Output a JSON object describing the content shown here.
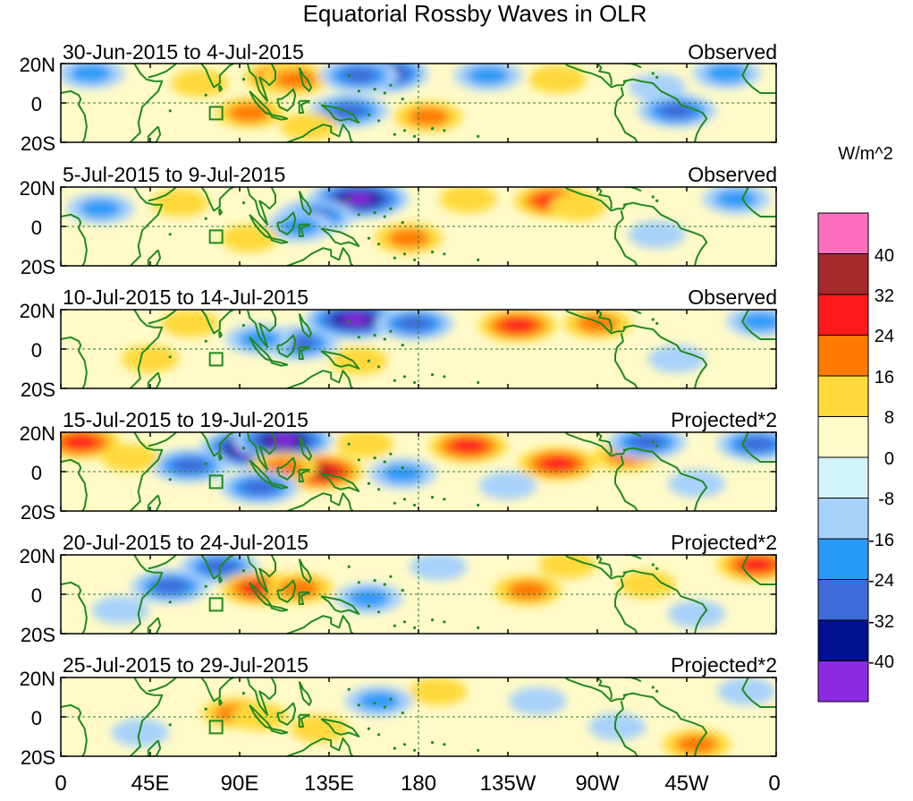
{
  "figure": {
    "title": "Equatorial Rossby Waves in OLR",
    "units_label": "W/m^2"
  },
  "panels": [
    {
      "date_range": "30-Jun-2015 to 4-Jul-2015",
      "type": "Observed"
    },
    {
      "date_range": "5-Jul-2015 to 9-Jul-2015",
      "type": "Observed"
    },
    {
      "date_range": "10-Jul-2015 to 14-Jul-2015",
      "type": "Observed"
    },
    {
      "date_range": "15-Jul-2015 to 19-Jul-2015",
      "type": "Projected*2"
    },
    {
      "date_range": "20-Jul-2015 to 24-Jul-2015",
      "type": "Projected*2"
    },
    {
      "date_range": "25-Jul-2015 to 29-Jul-2015",
      "type": "Projected*2"
    }
  ],
  "axes": {
    "lat_labels": [
      "20N",
      "0",
      "20S"
    ],
    "lon_labels": [
      "0",
      "45E",
      "90E",
      "135E",
      "180",
      "135W",
      "90W",
      "45W",
      "0"
    ],
    "lon_range": [
      0,
      360
    ],
    "lat_range": [
      -20,
      20
    ]
  },
  "colorbar": {
    "colors_top_to_bottom": [
      "#ff6fc0",
      "#a52a2a",
      "#ff1a1a",
      "#ff7a00",
      "#ffd93a",
      "#fffac8",
      "#d4f4fb",
      "#a8d2fa",
      "#2a9af8",
      "#3f6bd8",
      "#00108f",
      "#8a2be2"
    ],
    "tick_labels": [
      "40",
      "32",
      "24",
      "16",
      "8",
      "0",
      "-8",
      "-16",
      "-24",
      "-32",
      "-40"
    ]
  },
  "palette": {
    "coast": "#1f8a1f",
    "dashed_ref": "#2f7a2f"
  },
  "anomaly_features": [
    [
      {
        "lon": 112,
        "lat": 13,
        "level": 3
      },
      {
        "lon": 118,
        "lat": 12,
        "level": 2
      },
      {
        "lon": 160,
        "lat": 15,
        "level": -5
      },
      {
        "lon": 150,
        "lat": 14,
        "level": -3
      },
      {
        "lon": 215,
        "lat": 14,
        "level": -2
      },
      {
        "lon": 15,
        "lat": 15,
        "level": -2
      },
      {
        "lon": 95,
        "lat": -5,
        "level": 2
      },
      {
        "lon": 145,
        "lat": -4,
        "level": -3
      },
      {
        "lon": 125,
        "lat": -12,
        "level": 1
      },
      {
        "lon": 185,
        "lat": -7,
        "level": 2
      },
      {
        "lon": 250,
        "lat": 12,
        "level": 1
      },
      {
        "lon": 310,
        "lat": -4,
        "level": -3
      },
      {
        "lon": 300,
        "lat": 8,
        "level": -1
      },
      {
        "lon": 70,
        "lat": 10,
        "level": 1
      },
      {
        "lon": 335,
        "lat": 15,
        "level": -2
      }
    ],
    [
      {
        "lon": 150,
        "lat": 14,
        "level": -5
      },
      {
        "lon": 128,
        "lat": 5,
        "level": -3
      },
      {
        "lon": 120,
        "lat": 0,
        "level": -2
      },
      {
        "lon": 248,
        "lat": 13,
        "level": 3
      },
      {
        "lon": 260,
        "lat": 10,
        "level": 1
      },
      {
        "lon": 205,
        "lat": 14,
        "level": 1
      },
      {
        "lon": 20,
        "lat": 9,
        "level": -2
      },
      {
        "lon": 95,
        "lat": -6,
        "level": 1
      },
      {
        "lon": 175,
        "lat": -6,
        "level": 2
      },
      {
        "lon": 340,
        "lat": 14,
        "level": -2
      },
      {
        "lon": 300,
        "lat": -4,
        "level": -1
      },
      {
        "lon": 60,
        "lat": 12,
        "level": 1
      }
    ],
    [
      {
        "lon": 148,
        "lat": 15,
        "level": -5
      },
      {
        "lon": 120,
        "lat": 3,
        "level": -3
      },
      {
        "lon": 100,
        "lat": 5,
        "level": -2
      },
      {
        "lon": 178,
        "lat": 13,
        "level": -3
      },
      {
        "lon": 230,
        "lat": 12,
        "level": 3
      },
      {
        "lon": 270,
        "lat": 13,
        "level": 2
      },
      {
        "lon": 65,
        "lat": 13,
        "level": 1
      },
      {
        "lon": 150,
        "lat": -6,
        "level": 1
      },
      {
        "lon": 352,
        "lat": 14,
        "level": -2
      },
      {
        "lon": 310,
        "lat": -5,
        "level": -1
      },
      {
        "lon": 45,
        "lat": -5,
        "level": 1
      }
    ],
    [
      {
        "lon": 98,
        "lat": 12,
        "level": -6
      },
      {
        "lon": 112,
        "lat": 16,
        "level": -5
      },
      {
        "lon": 65,
        "lat": 3,
        "level": -3
      },
      {
        "lon": 130,
        "lat": 0,
        "level": 4
      },
      {
        "lon": 112,
        "lat": 2,
        "level": 2
      },
      {
        "lon": 153,
        "lat": 14,
        "level": 1
      },
      {
        "lon": 205,
        "lat": 13,
        "level": 3
      },
      {
        "lon": 250,
        "lat": 4,
        "level": 3
      },
      {
        "lon": 285,
        "lat": 8,
        "level": 2
      },
      {
        "lon": 10,
        "lat": 15,
        "level": 3
      },
      {
        "lon": 35,
        "lat": 7,
        "level": 1
      },
      {
        "lon": 172,
        "lat": -1,
        "level": -2
      },
      {
        "lon": 100,
        "lat": -8,
        "level": -3
      },
      {
        "lon": 295,
        "lat": 15,
        "level": -3
      },
      {
        "lon": 350,
        "lat": 14,
        "level": -3
      },
      {
        "lon": 225,
        "lat": -7,
        "level": -1
      },
      {
        "lon": 320,
        "lat": -6,
        "level": -1
      }
    ],
    [
      {
        "lon": 55,
        "lat": 4,
        "level": -3
      },
      {
        "lon": 80,
        "lat": 14,
        "level": -3
      },
      {
        "lon": 100,
        "lat": 3,
        "level": 3
      },
      {
        "lon": 120,
        "lat": 3,
        "level": 2
      },
      {
        "lon": 190,
        "lat": 14,
        "level": -1
      },
      {
        "lon": 235,
        "lat": 2,
        "level": 2
      },
      {
        "lon": 295,
        "lat": 5,
        "level": 1
      },
      {
        "lon": 350,
        "lat": 15,
        "level": 3
      },
      {
        "lon": 155,
        "lat": -2,
        "level": -2
      },
      {
        "lon": 320,
        "lat": -10,
        "level": -1
      },
      {
        "lon": 30,
        "lat": -8,
        "level": -1
      },
      {
        "lon": 255,
        "lat": 15,
        "level": 1
      }
    ],
    [
      {
        "lon": 88,
        "lat": 2,
        "level": 2
      },
      {
        "lon": 100,
        "lat": 0,
        "level": 1
      },
      {
        "lon": 320,
        "lat": -14,
        "level": 2
      },
      {
        "lon": 160,
        "lat": 8,
        "level": -2
      },
      {
        "lon": 345,
        "lat": 13,
        "level": -1
      },
      {
        "lon": 240,
        "lat": 8,
        "level": -1
      },
      {
        "lon": 190,
        "lat": 13,
        "level": 1
      },
      {
        "lon": 40,
        "lat": -8,
        "level": -1
      },
      {
        "lon": 280,
        "lat": -5,
        "level": -1
      },
      {
        "lon": 130,
        "lat": -6,
        "level": 1
      }
    ]
  ]
}
